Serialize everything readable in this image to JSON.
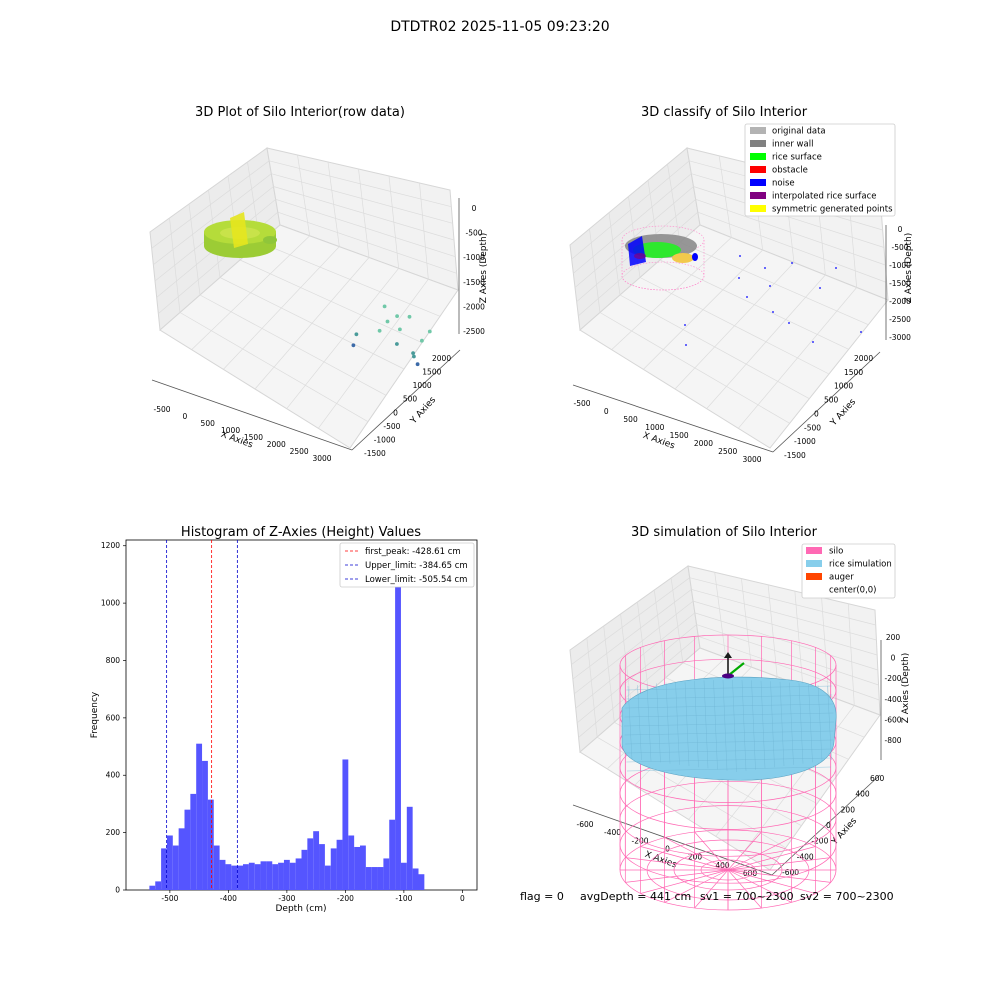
{
  "figure": {
    "suptitle": "DTDTR02 2025-11-05 09:23:20",
    "footer": {
      "flag": "flag = 0",
      "avg_depth": "avgDepth = 441 cm",
      "sv1": "sv1 = 700~2300",
      "sv2": "sv2 = 700~2300"
    }
  },
  "colors": {
    "hist_bar": "#5555ff",
    "first_peak": "#ff0000",
    "limit": "#0000cc",
    "original": "#b3b3b3",
    "inner_wall": "#808080",
    "rice_surface": "#00ff00",
    "obstacle": "#ff0000",
    "noise": "#0000ff",
    "interp": "#800080",
    "symmetric": "#ffff00",
    "silo": "#ff69b4",
    "rice_sim": "#87ceeb",
    "auger": "#ff4500"
  },
  "chart_data": [
    {
      "type": "scatter",
      "subtype": "3d",
      "title": "3D Plot of Silo Interior(row data)",
      "xlabel": "X Axies",
      "ylabel": "Y Axies",
      "zlabel": "Z Axies (Depth)",
      "xticks": [
        "-500",
        "0",
        "500",
        "1000",
        "1500",
        "2000",
        "2500",
        "3000"
      ],
      "yticks": [
        "-1500",
        "-1000",
        "-500",
        "0",
        "500",
        "1000",
        "1500",
        "2000"
      ],
      "zticks": [
        "0",
        "-500",
        "-1000",
        "-1500",
        "-2000",
        "-2500"
      ],
      "xlim": [
        -600,
        3100
      ],
      "ylim": [
        -1500,
        2100
      ],
      "zlim": [
        -2800,
        0
      ],
      "scattered_points": [
        {
          "x": 1700,
          "y": -900,
          "z": -950
        },
        {
          "x": 2000,
          "y": -700,
          "z": -1100
        },
        {
          "x": 2300,
          "y": -500,
          "z": -1000
        },
        {
          "x": 2700,
          "y": -600,
          "z": -1200
        },
        {
          "x": 1800,
          "y": -700,
          "z": -1350
        },
        {
          "x": 2100,
          "y": -500,
          "z": -1450
        },
        {
          "x": 2600,
          "y": -300,
          "z": -1550
        },
        {
          "x": 1700,
          "y": -400,
          "z": -1700
        },
        {
          "x": 2100,
          "y": -200,
          "z": -1900
        },
        {
          "x": 2500,
          "y": 100,
          "z": -2000
        },
        {
          "x": 1300,
          "y": 0,
          "z": -2050
        },
        {
          "x": 2600,
          "y": 500,
          "z": -2100
        },
        {
          "x": 1300,
          "y": 300,
          "z": -2400
        },
        {
          "x": 2800,
          "y": 1100,
          "z": -2300
        }
      ]
    },
    {
      "type": "scatter",
      "subtype": "3d",
      "title": "3D classify of Silo Interior",
      "xlabel": "X Axies",
      "ylabel": "Y Axies",
      "zlabel": "Z Axies (Depth)",
      "xticks": [
        "-500",
        "0",
        "500",
        "1000",
        "1500",
        "2000",
        "2500",
        "3000"
      ],
      "yticks": [
        "-1500",
        "-1000",
        "-500",
        "0",
        "500",
        "1000",
        "1500",
        "2000"
      ],
      "zticks": [
        "0",
        "-500",
        "-1000",
        "-1500",
        "-2000",
        "-2500",
        "-3000"
      ],
      "legend_position": "top-right",
      "legend": [
        "original data",
        "inner wall",
        "rice surface",
        "obstacle",
        "noise",
        "interpolated rice surface",
        "symmetric generated points"
      ]
    },
    {
      "type": "bar",
      "subtype": "histogram",
      "title": "Histogram of Z-Axies (Height) Values",
      "xlabel": "Depth (cm)",
      "ylabel": "Frequency",
      "xlim": [
        -575,
        25
      ],
      "ylim": [
        0,
        1220
      ],
      "xticks": [
        -500,
        -400,
        -300,
        -200,
        -100,
        0
      ],
      "yticks": [
        0,
        200,
        400,
        600,
        800,
        1000,
        1200
      ],
      "bin_start": -535,
      "bin_width": 10,
      "values": [
        15,
        30,
        145,
        190,
        155,
        215,
        280,
        335,
        510,
        450,
        315,
        155,
        105,
        90,
        85,
        85,
        90,
        95,
        90,
        100,
        100,
        90,
        95,
        105,
        95,
        110,
        140,
        180,
        205,
        160,
        85,
        145,
        175,
        455,
        190,
        150,
        155,
        80,
        80,
        80,
        110,
        245,
        1145,
        95,
        290,
        75,
        55
      ],
      "legend_position": "top-right",
      "vlines": [
        {
          "label": "first_peak: -428.61 cm",
          "x": -428.61,
          "color": "#ff0000"
        },
        {
          "label": "Upper_limit: -384.65 cm",
          "x": -384.65,
          "color": "#0000cc"
        },
        {
          "label": "Lower_limit: -505.54 cm",
          "x": -505.54,
          "color": "#0000cc"
        }
      ]
    },
    {
      "type": "scatter",
      "subtype": "3d",
      "title": "3D simulation of Silo Interior",
      "xlabel": "X Axies",
      "ylabel": "Y Axies",
      "zlabel": "Z Axies (Depth)",
      "xticks": [
        "-600",
        "-400",
        "-200",
        "0",
        "200",
        "400",
        "600"
      ],
      "yticks": [
        "-600",
        "-400",
        "-200",
        "0",
        "200",
        "400",
        "600"
      ],
      "zticks": [
        "200",
        "0",
        "-200",
        "-400",
        "-600",
        "-800"
      ],
      "legend_position": "top-right",
      "legend": [
        "silo",
        "rice simulation",
        "auger",
        "center(0,0)"
      ]
    }
  ]
}
